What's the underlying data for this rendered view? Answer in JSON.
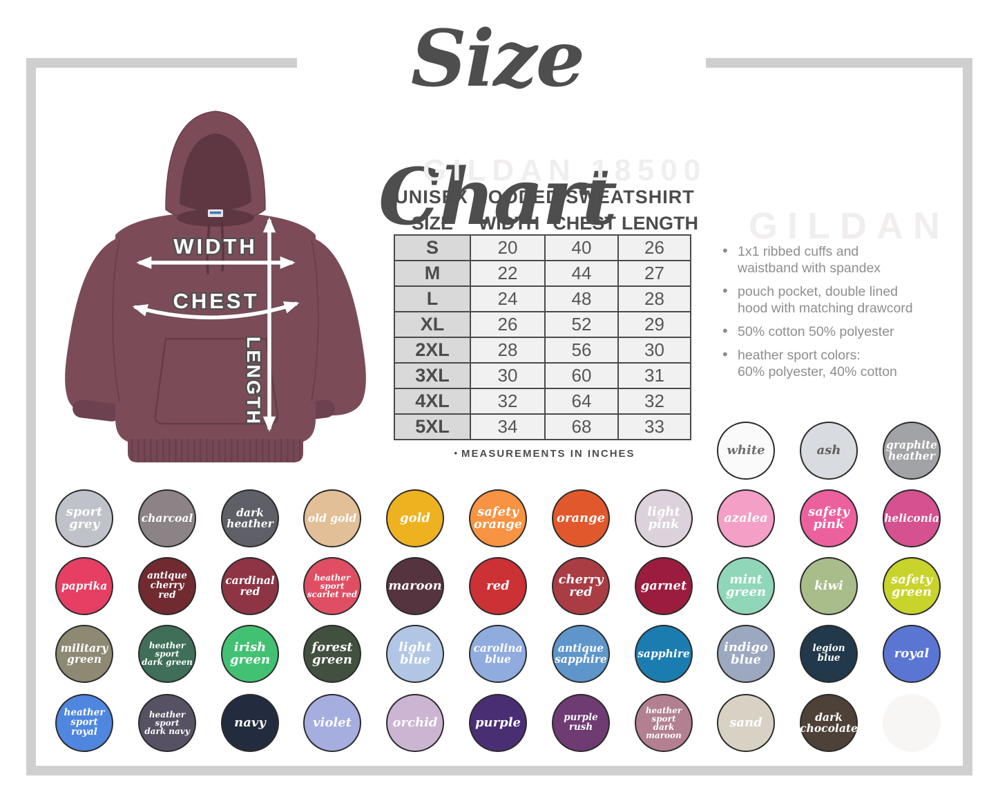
{
  "title": "Size Chart",
  "watermarks": {
    "top": "GILDAN 18500",
    "right": "GILDAN"
  },
  "hoodie": {
    "color_name": "maroon",
    "width_label": "WIDTH",
    "chest_label": "CHEST",
    "length_label": "LENGTH"
  },
  "size_table": {
    "title": "UNISEX HOODED SWEATSHIRT",
    "columns": [
      "SIZE",
      "WIDTH",
      "CHEST",
      "LENGTH"
    ],
    "rows": [
      [
        "S",
        "20",
        "40",
        "26"
      ],
      [
        "M",
        "22",
        "44",
        "27"
      ],
      [
        "L",
        "24",
        "48",
        "28"
      ],
      [
        "XL",
        "26",
        "52",
        "29"
      ],
      [
        "2XL",
        "28",
        "56",
        "30"
      ],
      [
        "3XL",
        "30",
        "60",
        "31"
      ],
      [
        "4XL",
        "32",
        "64",
        "32"
      ],
      [
        "5XL",
        "34",
        "68",
        "33"
      ]
    ],
    "footnote_bullet": "•",
    "footnote": "MEASUREMENTS IN INCHES"
  },
  "features": [
    "1x1 ribbed cuffs and\nwaistband with spandex",
    "pouch pocket, double lined\nhood with matching drawcord",
    "50% cotton 50% polyester",
    "heather sport colors:\n60% polyester, 40% cotton"
  ],
  "swatch_rows": [
    [
      {
        "label": "white",
        "color": "#fafafa",
        "text_color": "#6e6e6e"
      },
      {
        "label": "ash",
        "color": "#d8dbdf",
        "text_color": "#5f5f5f"
      },
      {
        "label": "graphite\nheather",
        "color": "#a2a3a7",
        "text_color": "#ffffff",
        "heather": true
      }
    ],
    [
      {
        "label": "sport\ngrey",
        "color": "#bfc3c9",
        "text_color": "#ffffff",
        "heather": true
      },
      {
        "label": "charcoal",
        "color": "#8b8386",
        "text_color": "#ffffff"
      },
      {
        "label": "dark\nheather",
        "color": "#5f6067",
        "text_color": "#ffffff",
        "heather": true
      },
      {
        "label": "old gold",
        "color": "#e2bf97",
        "text_color": "#ffffff"
      },
      {
        "label": "gold",
        "color": "#eeb220",
        "text_color": "#ffffff"
      },
      {
        "label": "safety\norange",
        "color": "#f79342",
        "text_color": "#ffffff"
      },
      {
        "label": "orange",
        "color": "#e2582d",
        "text_color": "#ffffff"
      },
      {
        "label": "light\npink",
        "color": "#dcd2db",
        "text_color": "#ffffff"
      },
      {
        "label": "azalea",
        "color": "#f49fc5",
        "text_color": "#ffffff"
      },
      {
        "label": "safety\npink",
        "color": "#ec609e",
        "text_color": "#ffffff"
      },
      {
        "label": "heliconia",
        "color": "#d5518f",
        "text_color": "#ffffff"
      }
    ],
    [
      {
        "label": "paprika",
        "color": "#e73e63",
        "text_color": "#ffffff"
      },
      {
        "label": "antique\ncherry red",
        "color": "#702a30",
        "text_color": "#ffffff"
      },
      {
        "label": "cardinal\nred",
        "color": "#8e3444",
        "text_color": "#ffffff"
      },
      {
        "label": "heather sport\nscarlet red",
        "color": "#e04e64",
        "text_color": "#ffffff",
        "heather": true
      },
      {
        "label": "maroon",
        "color": "#553440",
        "text_color": "#ffffff"
      },
      {
        "label": "red",
        "color": "#cb3135",
        "text_color": "#ffffff"
      },
      {
        "label": "cherry\nred",
        "color": "#aa3c44",
        "text_color": "#ffffff"
      },
      {
        "label": "garnet",
        "color": "#9c1c3e",
        "text_color": "#ffffff"
      },
      {
        "label": "mint\ngreen",
        "color": "#90d7ba",
        "text_color": "#ffffff"
      },
      {
        "label": "kiwi",
        "color": "#a9bd8b",
        "text_color": "#ffffff"
      },
      {
        "label": "safety\ngreen",
        "color": "#c8d42b",
        "text_color": "#ffffff"
      }
    ],
    [
      {
        "label": "military\ngreen",
        "color": "#8d8973",
        "text_color": "#ffffff"
      },
      {
        "label": "heather sport\ndark green",
        "color": "#3f6e59",
        "text_color": "#ffffff",
        "heather": true
      },
      {
        "label": "irish\ngreen",
        "color": "#42c172",
        "text_color": "#ffffff"
      },
      {
        "label": "forest\ngreen",
        "color": "#42503f",
        "text_color": "#ffffff"
      },
      {
        "label": "light\nblue",
        "color": "#b1c6e5",
        "text_color": "#ffffff"
      },
      {
        "label": "carolina\nblue",
        "color": "#90acdf",
        "text_color": "#ffffff"
      },
      {
        "label": "antique\nsapphire",
        "color": "#5e95ca",
        "text_color": "#ffffff"
      },
      {
        "label": "sapphire",
        "color": "#1b7cb0",
        "text_color": "#ffffff"
      },
      {
        "label": "indigo\nblue",
        "color": "#9ca8c0",
        "text_color": "#ffffff",
        "heather": true
      },
      {
        "label": "legion blue",
        "color": "#22394b",
        "text_color": "#ffffff"
      },
      {
        "label": "royal",
        "color": "#5b76d2",
        "text_color": "#ffffff"
      }
    ],
    [
      {
        "label": "heather\nsport royal",
        "color": "#4f86df",
        "text_color": "#ffffff",
        "heather": true
      },
      {
        "label": "heather sport\ndark navy",
        "color": "#575263",
        "text_color": "#ffffff",
        "heather": true
      },
      {
        "label": "navy",
        "color": "#232c3e",
        "text_color": "#ffffff"
      },
      {
        "label": "violet",
        "color": "#a6addf",
        "text_color": "#ffffff"
      },
      {
        "label": "orchid",
        "color": "#ccb5d2",
        "text_color": "#ffffff"
      },
      {
        "label": "purple",
        "color": "#4a2e74",
        "text_color": "#ffffff"
      },
      {
        "label": "purple rush",
        "color": "#6e3b72",
        "text_color": "#ffffff"
      },
      {
        "label": "heather sport\ndark maroon",
        "color": "#b28090",
        "text_color": "#ffffff",
        "heather": true
      },
      {
        "label": "sand",
        "color": "#d8d2c4",
        "text_color": "#ffffff"
      },
      {
        "label": "dark\nchocolate",
        "color": "#4e4138",
        "text_color": "#ffffff"
      },
      {
        "label": "",
        "color": "#f8f6f4",
        "text_color": "#ffffff",
        "ghost": true
      }
    ]
  ]
}
